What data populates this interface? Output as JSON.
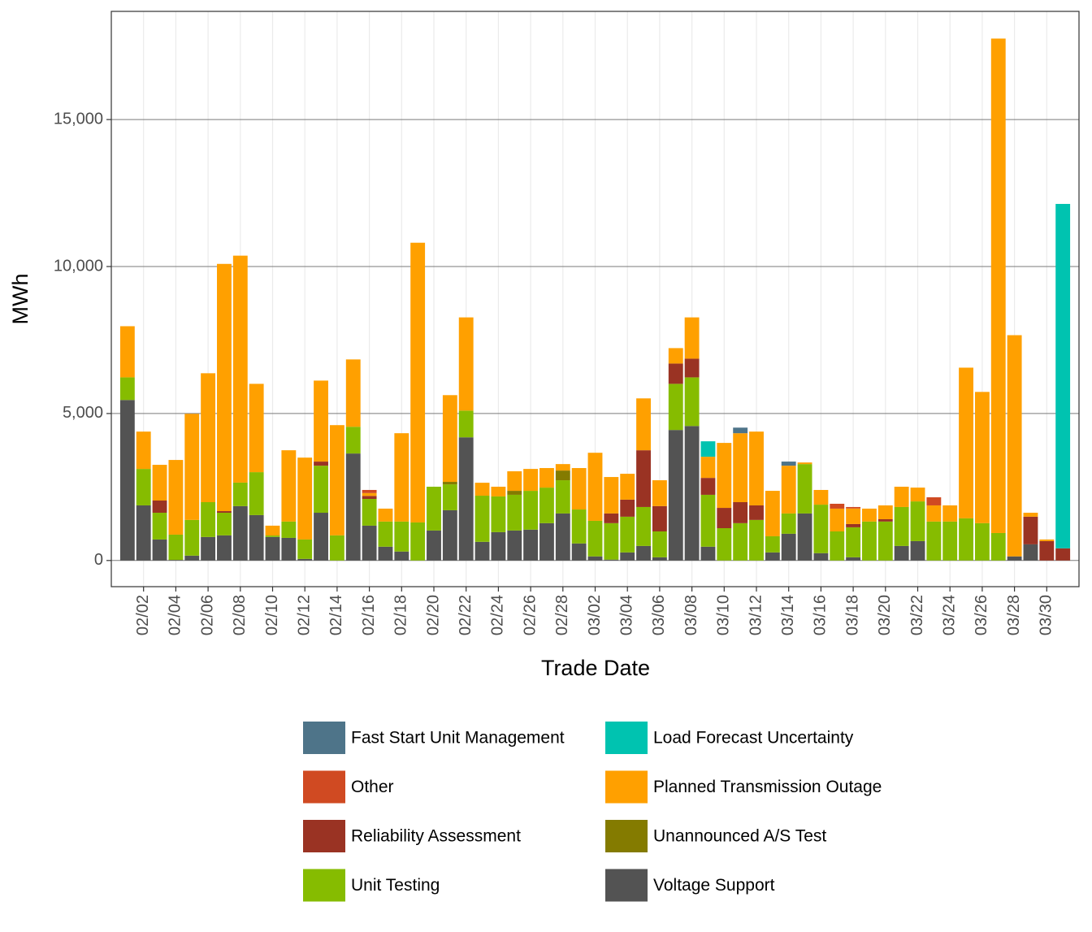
{
  "chart_data": {
    "type": "stacked-bar",
    "x_label": "Trade Date",
    "y_label": "MWh",
    "categories": [
      null,
      "02/02",
      null,
      "02/04",
      null,
      "02/06",
      null,
      "02/08",
      null,
      "02/10",
      null,
      "02/12",
      null,
      "02/14",
      null,
      "02/16",
      null,
      "02/18",
      null,
      "02/20",
      null,
      "02/22",
      null,
      "02/24",
      null,
      "02/26",
      null,
      "02/28",
      null,
      "03/02",
      null,
      "03/04",
      null,
      "03/06",
      null,
      "03/08",
      null,
      "03/10",
      null,
      "03/12",
      null,
      "03/14",
      null,
      "03/16",
      null,
      "03/18",
      null,
      "03/20",
      null,
      "03/22",
      null,
      "03/24",
      null,
      "03/26",
      null,
      "03/28",
      null,
      "03/30",
      null
    ],
    "ylim": [
      -890,
      18680
    ],
    "yticks": [
      0,
      {
        "value": 5000,
        "label": "5,000"
      },
      {
        "value": 10000,
        "label": "10,000"
      },
      {
        "value": 15000,
        "label": "15,000"
      }
    ],
    "grid": true,
    "series": [
      {
        "name": "Fast Start Unit Management",
        "color": "#4e7489",
        "values": [
          0,
          0,
          0,
          0,
          0,
          0,
          0,
          0,
          0,
          0,
          0,
          0,
          0,
          0,
          0,
          0,
          0,
          0,
          0,
          0,
          0,
          0,
          0,
          0,
          0,
          0,
          0,
          0,
          0,
          0,
          0,
          0,
          0,
          0,
          0,
          0,
          0,
          0,
          190,
          0,
          0,
          140,
          0,
          0,
          0,
          0,
          0,
          0,
          0,
          0,
          0,
          0,
          0,
          0,
          0,
          0,
          0,
          0,
          0
        ]
      },
      {
        "name": "Load Forecast Uncertainty",
        "color": "#00c3b0",
        "values": [
          0,
          0,
          0,
          0,
          0,
          0,
          0,
          0,
          0,
          0,
          0,
          0,
          0,
          0,
          0,
          0,
          0,
          0,
          0,
          0,
          0,
          0,
          0,
          0,
          0,
          0,
          0,
          0,
          0,
          0,
          0,
          0,
          0,
          0,
          0,
          0,
          525,
          0,
          0,
          0,
          0,
          0,
          0,
          0,
          0,
          0,
          0,
          0,
          0,
          0,
          0,
          0,
          0,
          0,
          0,
          0,
          0,
          0,
          11715
        ]
      },
      {
        "name": "Other",
        "color": "#d04a22",
        "values": [
          0,
          0,
          0,
          0,
          0,
          0,
          0,
          0,
          0,
          0,
          0,
          0,
          0,
          0,
          0,
          105,
          0,
          0,
          0,
          0,
          0,
          0,
          0,
          0,
          0,
          0,
          0,
          0,
          0,
          0,
          0,
          0,
          0,
          0,
          0,
          0,
          0,
          0,
          0,
          0,
          0,
          0,
          0,
          0,
          165,
          50,
          0,
          0,
          0,
          0,
          275,
          0,
          0,
          0,
          0,
          0,
          0,
          0,
          0
        ]
      },
      {
        "name": "Planned Transmission Outage",
        "color": "#ffa000",
        "values": [
          1740,
          1270,
          1215,
          2540,
          3610,
          4385,
          8410,
          7720,
          3005,
          335,
          2425,
          2785,
          2755,
          3750,
          2290,
          100,
          440,
          3005,
          9515,
          0,
          2950,
          3170,
          440,
          330,
          665,
          745,
          665,
          220,
          1410,
          2315,
          1240,
          880,
          1765,
          880,
          525,
          1405,
          720,
          2210,
          2345,
          2510,
          1545,
          1625,
          55,
          500,
          775,
          530,
          440,
          470,
          690,
          470,
          550,
          550,
          5125,
          4465,
          16820,
          7525,
          135,
          55,
          0
        ]
      },
      {
        "name": "Reliability Assessment",
        "color": "#9a3323",
        "values": [
          0,
          0,
          415,
          0,
          0,
          0,
          55,
          0,
          0,
          0,
          0,
          0,
          140,
          0,
          0,
          100,
          0,
          0,
          0,
          0,
          0,
          0,
          0,
          0,
          0,
          0,
          0,
          0,
          0,
          0,
          330,
          580,
          1930,
          860,
          690,
          635,
          575,
          690,
          715,
          495,
          0,
          0,
          0,
          0,
          0,
          110,
          0,
          80,
          0,
          0,
          0,
          0,
          0,
          0,
          0,
          0,
          940,
          660,
          415
        ]
      },
      {
        "name": "Unannounced A/S Test",
        "color": "#847b00",
        "values": [
          0,
          0,
          0,
          0,
          0,
          0,
          0,
          0,
          0,
          0,
          0,
          0,
          0,
          0,
          0,
          0,
          0,
          0,
          0,
          0,
          85,
          0,
          0,
          0,
          135,
          0,
          0,
          330,
          0,
          0,
          0,
          0,
          0,
          0,
          0,
          0,
          0,
          0,
          0,
          0,
          0,
          0,
          0,
          0,
          0,
          0,
          0,
          0,
          0,
          0,
          0,
          0,
          0,
          0,
          0,
          0,
          0,
          0,
          0
        ]
      },
      {
        "name": "Unit Testing",
        "color": "#86bc00",
        "values": [
          770,
          1240,
          910,
          860,
          1215,
          1185,
          770,
          800,
          1460,
          50,
          555,
          660,
          1600,
          855,
          910,
          910,
          855,
          1020,
          1295,
          1490,
          880,
          910,
          1570,
          1215,
          1215,
          1320,
          1210,
          1130,
          1155,
          1210,
          1240,
          1215,
          1325,
          880,
          1570,
          1655,
          1765,
          1100,
          1270,
          1380,
          550,
          690,
          1680,
          1650,
          990,
          1020,
          1325,
          1325,
          1325,
          1350,
          1325,
          1325,
          1435,
          1270,
          935,
          0,
          0,
          0,
          0
        ]
      },
      {
        "name": "Voltage Support",
        "color": "#535353",
        "values": [
          5460,
          1875,
          715,
          20,
          165,
          800,
          855,
          1850,
          1545,
          800,
          770,
          55,
          1625,
          0,
          3640,
          1185,
          470,
          305,
          0,
          1020,
          1710,
          4190,
          635,
          965,
          1020,
          1050,
          1270,
          1600,
          580,
          140,
          30,
          275,
          495,
          110,
          4440,
          4575,
          470,
          0,
          0,
          0,
          275,
          910,
          1600,
          250,
          0,
          110,
          0,
          0,
          495,
          660,
          0,
          0,
          0,
          0,
          0,
          140,
          550,
          0,
          0
        ]
      }
    ]
  }
}
